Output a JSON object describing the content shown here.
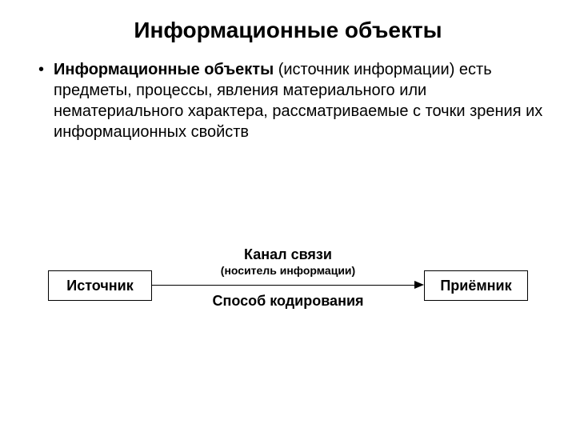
{
  "title": "Информационные объекты",
  "body": {
    "lead_bold": "Информационные объекты",
    "rest": " (источник информации) есть предметы, процессы, явления материального или нематериального характера, рассматриваемые с точки зрения их информационных свойств"
  },
  "diagram": {
    "type": "flowchart",
    "background_color": "#ffffff",
    "node_border_color": "#000000",
    "node_fill_color": "#ffffff",
    "arrow_color": "#000000",
    "text_color": "#000000",
    "nodes": {
      "source": {
        "label": "Источник",
        "font_size": 18,
        "font_weight": "bold"
      },
      "receiver": {
        "label": "Приёмник",
        "font_size": 18,
        "font_weight": "bold"
      }
    },
    "edge_labels": {
      "top_main": "Канал связи",
      "top_sub": "(носитель информации)",
      "bottom": "Способ кодирования"
    },
    "label_fontsize_main": 18,
    "label_fontsize_sub": 14
  }
}
